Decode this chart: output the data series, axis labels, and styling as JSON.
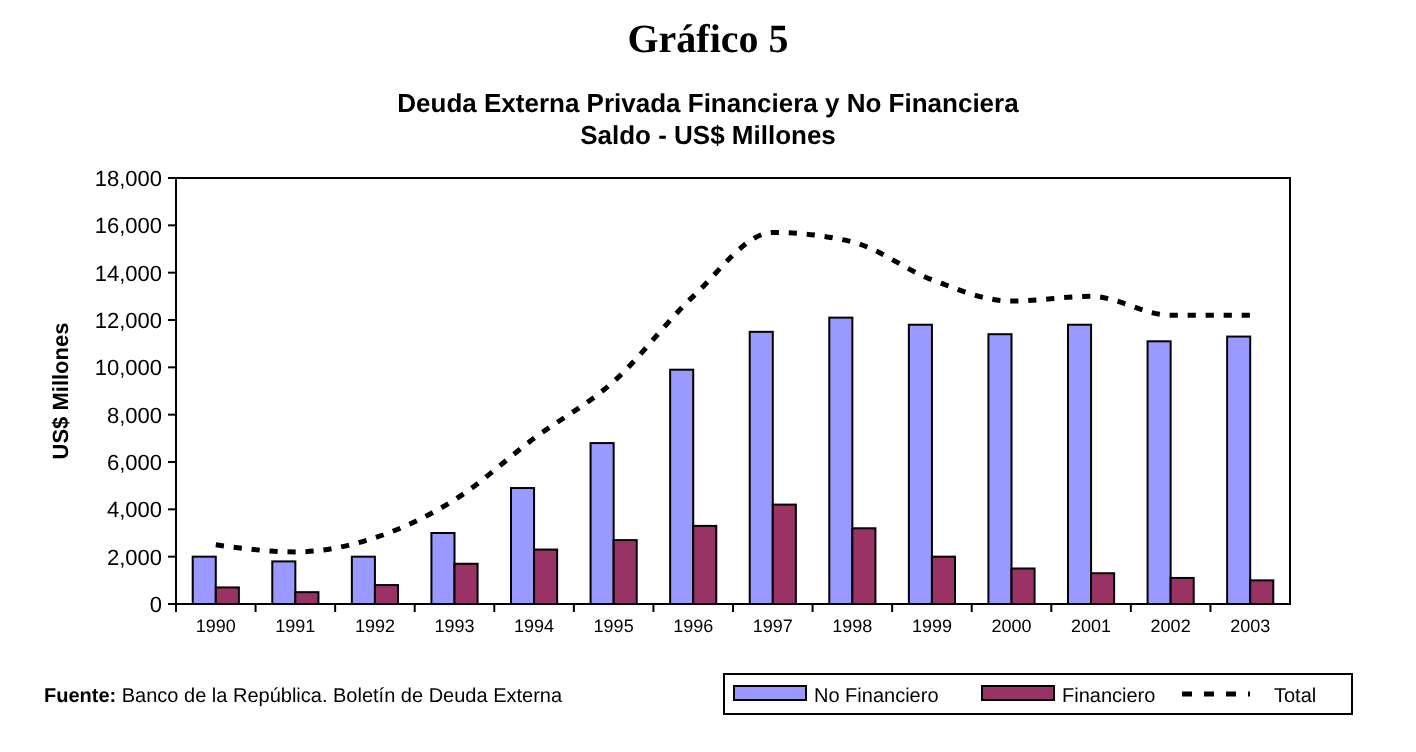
{
  "chart_data": {
    "type": "bar",
    "title": "Gráfico 5",
    "subtitle": "Deuda Externa Privada Financiera y No Financiera\nSaldo - US$ Millones",
    "ylabel": "US$ Millones",
    "annotations": [
      "Fuente: Banco de la República. Boletín de Deuda Externa"
    ],
    "categories": [
      "1990",
      "1991",
      "1992",
      "1993",
      "1994",
      "1995",
      "1996",
      "1997",
      "1998",
      "1999",
      "2000",
      "2001",
      "2002",
      "2003"
    ],
    "series": [
      {
        "name": "No Financiero",
        "color": "#9999ff",
        "values": [
          2000,
          1800,
          2000,
          3000,
          4900,
          6800,
          9900,
          11500,
          12100,
          11800,
          11400,
          11800,
          11100,
          11300
        ]
      },
      {
        "name": "Financiero",
        "color": "#993366",
        "values": [
          700,
          500,
          800,
          1700,
          2300,
          2700,
          3300,
          4200,
          3200,
          2000,
          1500,
          1300,
          1100,
          1000
        ]
      },
      {
        "name": "Total",
        "type": "line",
        "color": "#000000",
        "line_style": "dashed",
        "values": [
          2500,
          2200,
          2800,
          4400,
          7000,
          9400,
          13000,
          15700,
          15300,
          13700,
          12800,
          13000,
          12200,
          12200
        ]
      }
    ],
    "ylim": [
      0,
      18000
    ],
    "yticks": [
      {
        "value": 0,
        "label": "0"
      },
      {
        "value": 2000,
        "label": "2,000"
      },
      {
        "value": 4000,
        "label": "4,000"
      },
      {
        "value": 6000,
        "label": "6,000"
      },
      {
        "value": 8000,
        "label": "8,000"
      },
      {
        "value": 10000,
        "label": "10,000"
      },
      {
        "value": 12000,
        "label": "12,000"
      },
      {
        "value": 14000,
        "label": "14,000"
      },
      {
        "value": 16000,
        "label": "16,000"
      },
      {
        "value": 18000,
        "label": "18,000"
      }
    ],
    "grid": false,
    "legend": "bottom right"
  }
}
